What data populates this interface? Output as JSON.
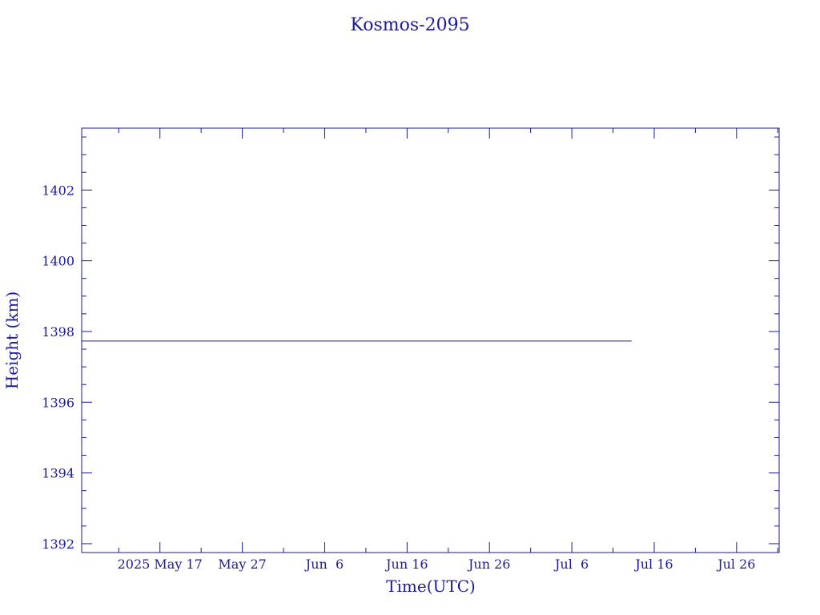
{
  "chart_data": {
    "type": "line",
    "title": "Kosmos-2095",
    "xlabel": "Time(UTC)",
    "ylabel": "Height (km)",
    "x_ticks": [
      "2025 May 17",
      "May 27",
      "Jun  6",
      "Jun 16",
      "Jun 26",
      "Jul  6",
      "Jul 16",
      "Jul 26"
    ],
    "x_tick_dates": [
      "2025-05-17",
      "2025-05-27",
      "2025-06-06",
      "2025-06-16",
      "2025-06-26",
      "2025-07-06",
      "2025-07-16",
      "2025-07-26"
    ],
    "xlim": [
      "2025-05-07T12:00",
      "2025-07-31T04:00"
    ],
    "ylim": [
      1391.75,
      1403.75
    ],
    "y_ticks": [
      1392,
      1394,
      1396,
      1398,
      1400,
      1402
    ],
    "series": [
      {
        "x": [
          "2025-05-07T12:00",
          "2025-07-13T06:00"
        ],
        "y": [
          1397.73,
          1397.73
        ]
      }
    ],
    "grid": false
  },
  "colors": {
    "axis": "#1a1a9a",
    "line": "#1a1a9a"
  }
}
